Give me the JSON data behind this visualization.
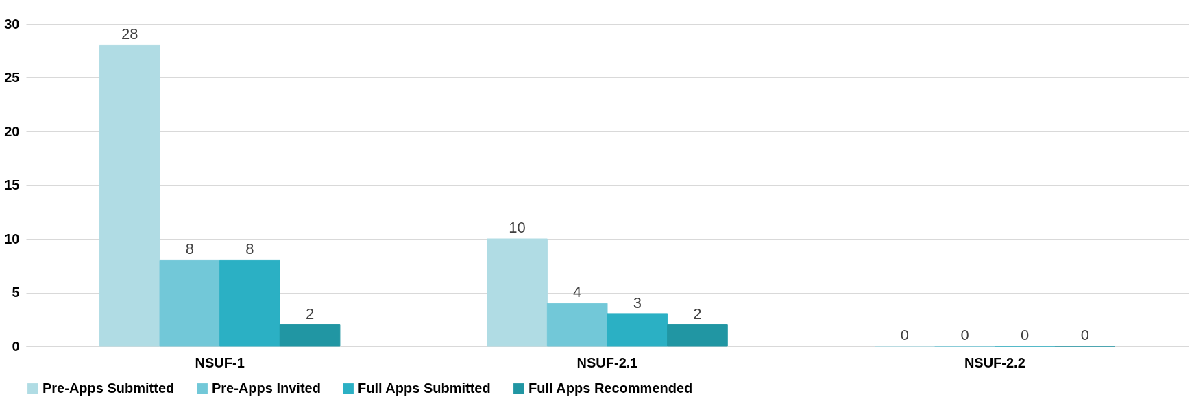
{
  "chart_data": {
    "type": "bar",
    "categories": [
      "NSUF-1",
      "NSUF-2.1",
      "NSUF-2.2"
    ],
    "series": [
      {
        "name": "Pre-Apps Submitted",
        "color": "#b0dce4",
        "values": [
          28,
          10,
          0
        ]
      },
      {
        "name": "Pre-Apps Invited",
        "color": "#72c8d8",
        "values": [
          8,
          4,
          0
        ]
      },
      {
        "name": "Full Apps Submitted",
        "color": "#2bb0c4",
        "values": [
          8,
          3,
          0
        ]
      },
      {
        "name": "Full Apps Recommended",
        "color": "#2196a3",
        "values": [
          2,
          2,
          0
        ]
      }
    ],
    "ylim": [
      0,
      30
    ],
    "yticks": [
      0,
      5,
      10,
      15,
      20,
      25,
      30
    ],
    "grid": "y",
    "legend": "bottom",
    "data_labels": true
  }
}
